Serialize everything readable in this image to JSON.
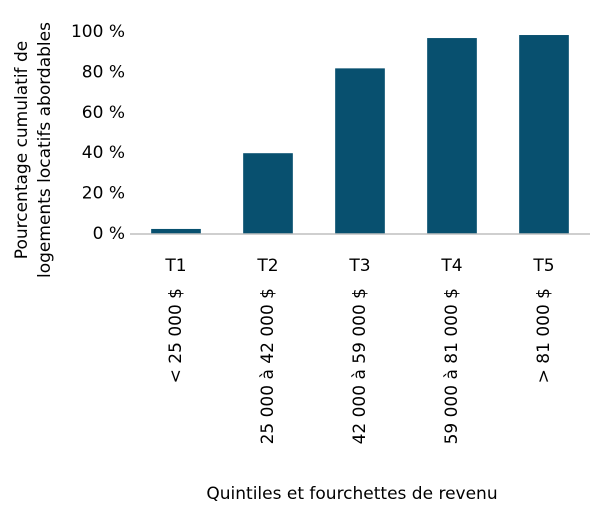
{
  "chart_data": {
    "type": "bar",
    "ylabel": [
      "Pourcentage cumulatif de",
      "logements locatifs abordables"
    ],
    "xlabel": "Quintiles et fourchettes de revenu",
    "categories": [
      "T1",
      "T2",
      "T3",
      "T4",
      "T5"
    ],
    "category_ranges": [
      "< 25 000 $",
      "25 000 à 42 000 $",
      "42 000 à 59 000 $",
      "59 000 à 81 000 $",
      "> 81 000 $"
    ],
    "values": [
      2.5,
      40,
      82,
      97,
      98.5
    ],
    "color": "#08506f",
    "ylim": [
      0,
      100
    ],
    "yticks": [
      {
        "value": 0,
        "label": "0 %"
      },
      {
        "value": 20,
        "label": "20 %"
      },
      {
        "value": 40,
        "label": "40 %"
      },
      {
        "value": 60,
        "label": "60 %"
      },
      {
        "value": 80,
        "label": "80 %"
      },
      {
        "value": 100,
        "label": "100 %"
      }
    ],
    "grid": false
  }
}
